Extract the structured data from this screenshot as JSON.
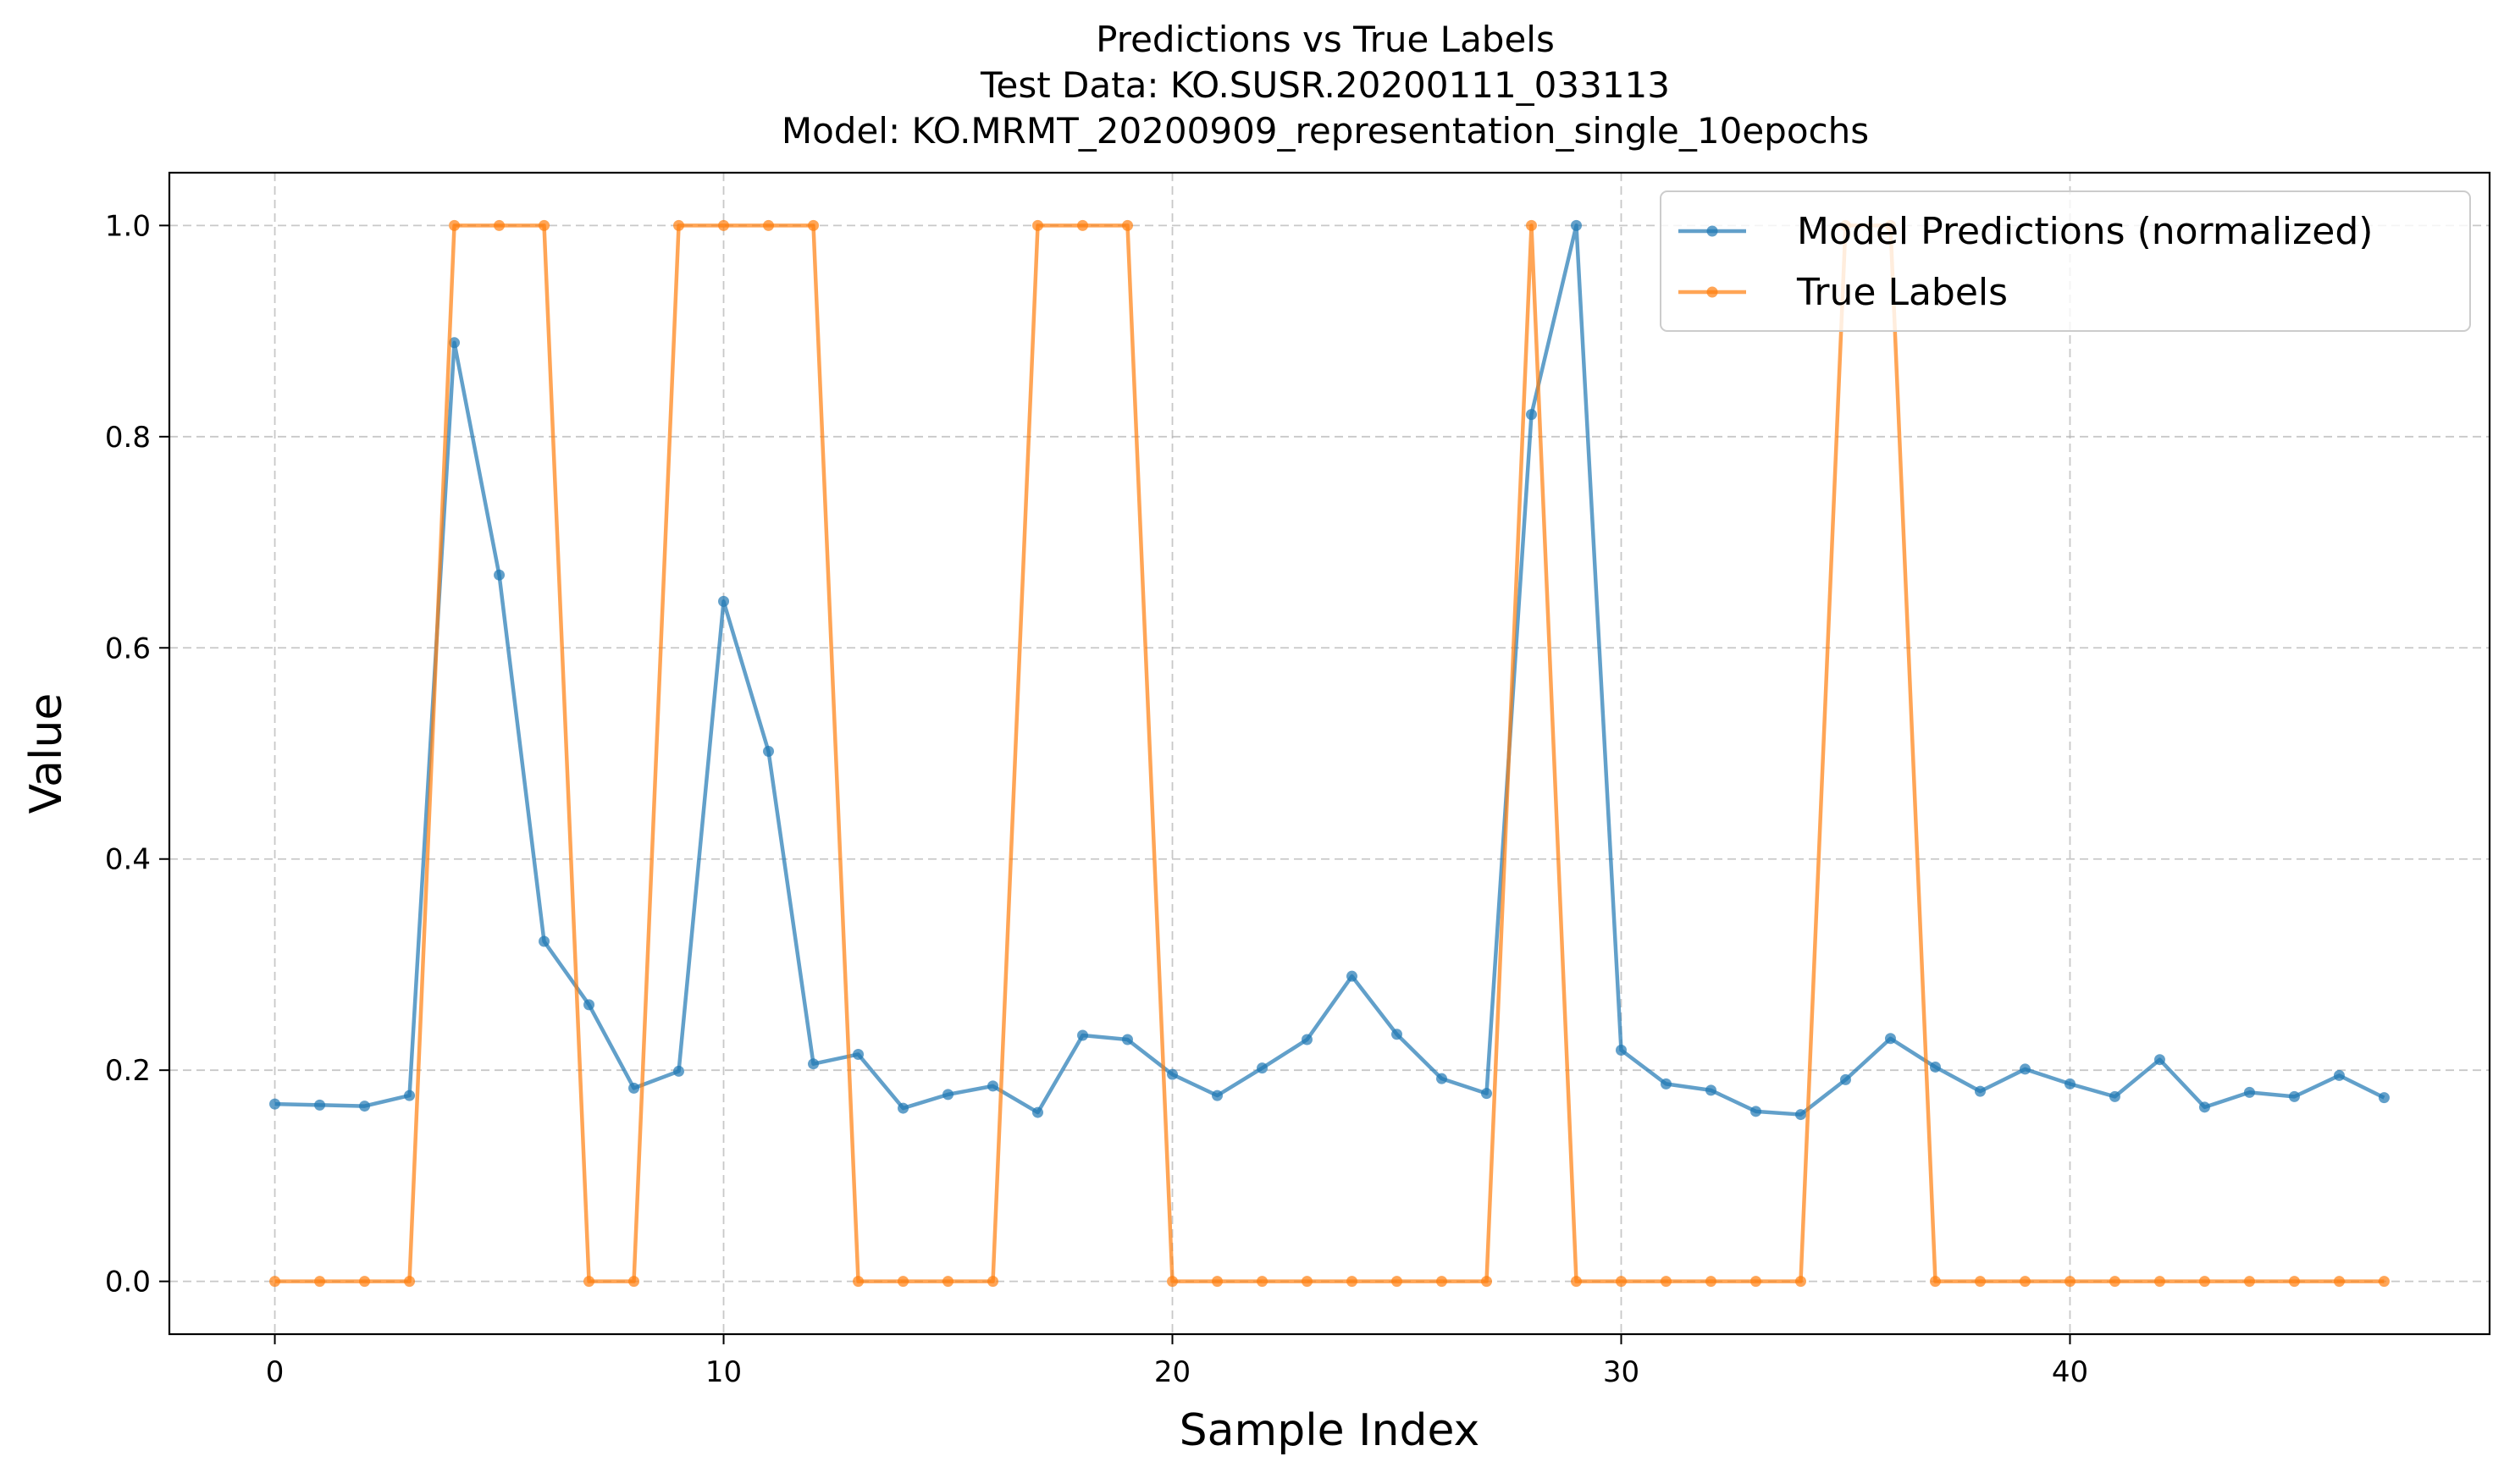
{
  "title_lines": [
    "Predictions vs True Labels",
    "Test Data: KO.SUSR.20200111_033113",
    "Model: KO.MRMT_20200909_representation_single_10epochs"
  ],
  "chart_data": {
    "type": "line",
    "title": "Predictions vs True Labels\nTest Data: KO.SUSR.20200111_033113\nModel: KO.MRMT_20200909_representation_single_10epochs",
    "xlabel": "Sample Index",
    "ylabel": "Value",
    "xlim": [
      -2.35,
      49.35
    ],
    "ylim": [
      -0.05,
      1.05
    ],
    "x_ticks": [
      0,
      10,
      20,
      30,
      40
    ],
    "x_tick_labels": [
      "0",
      "10",
      "20",
      "30",
      "40"
    ],
    "y_ticks": [
      0.0,
      0.2,
      0.4,
      0.6,
      0.8,
      1.0
    ],
    "y_tick_labels": [
      "0.0",
      "0.2",
      "0.4",
      "0.6",
      "0.8",
      "1.0"
    ],
    "grid": true,
    "legend_position": "top-right",
    "x": [
      0,
      1,
      2,
      3,
      4,
      5,
      6,
      7,
      8,
      9,
      10,
      11,
      12,
      13,
      14,
      15,
      16,
      17,
      18,
      19,
      20,
      21,
      22,
      23,
      24,
      25,
      26,
      27,
      28,
      29,
      30,
      31,
      32,
      33,
      34,
      35,
      36,
      37,
      38,
      39,
      40,
      41,
      42,
      43,
      44,
      45,
      46,
      47
    ],
    "series": [
      {
        "name": "Model Predictions (normalized)",
        "color": "#1f77b4",
        "values": [
          0.168,
          0.167,
          0.166,
          0.176,
          0.889,
          0.669,
          0.322,
          0.262,
          0.183,
          0.199,
          0.644,
          0.502,
          0.206,
          0.215,
          0.164,
          0.177,
          0.185,
          0.16,
          0.233,
          0.229,
          0.196,
          0.176,
          0.202,
          0.229,
          0.289,
          0.234,
          0.192,
          0.178,
          0.821,
          1.0,
          0.219,
          0.187,
          0.181,
          0.161,
          0.158,
          0.191,
          0.23,
          0.203,
          0.18,
          0.201,
          0.187,
          0.175,
          0.21,
          0.165,
          0.179,
          0.175,
          0.195,
          0.174
        ]
      },
      {
        "name": "True Labels",
        "color": "#ff7f0e",
        "values": [
          0,
          0,
          0,
          0,
          1,
          1,
          1,
          0,
          0,
          1,
          1,
          1,
          1,
          0,
          0,
          0,
          0,
          1,
          1,
          1,
          0,
          0,
          0,
          0,
          0,
          0,
          0,
          0,
          1,
          0,
          0,
          0,
          0,
          0,
          0,
          1,
          1,
          0,
          0,
          0,
          0,
          0,
          0,
          0,
          0,
          0,
          0,
          0
        ]
      }
    ]
  }
}
